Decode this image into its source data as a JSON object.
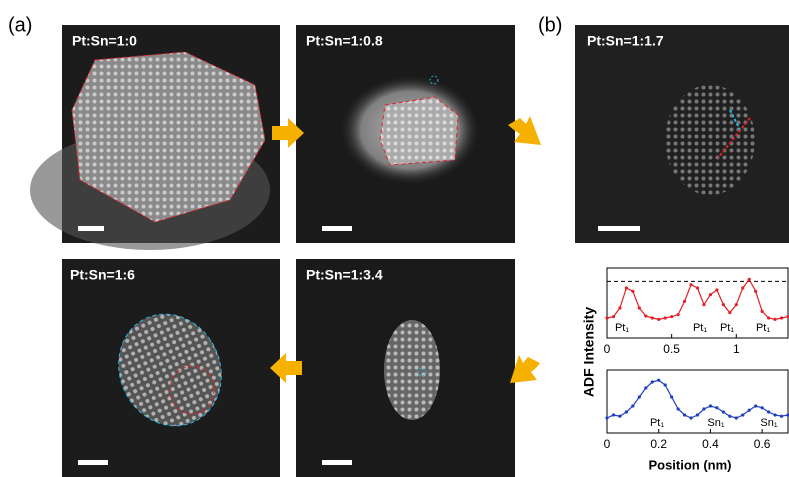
{
  "panel_labels": [
    "(a)",
    "(b)"
  ],
  "images": [
    {
      "label": "Pt:Sn=1:0"
    },
    {
      "label": "Pt:Sn=1:0.8"
    },
    {
      "label": "Pt:Sn=1:6"
    },
    {
      "label": "Pt:Sn=1:3.4"
    },
    {
      "label": "Pt:Sn=1:1.7"
    }
  ],
  "chart_data": [
    {
      "type": "line",
      "ylabel": "ADF Intensity",
      "x": [
        0,
        0.05,
        0.1,
        0.15,
        0.2,
        0.25,
        0.3,
        0.35,
        0.4,
        0.45,
        0.5,
        0.55,
        0.6,
        0.65,
        0.7,
        0.75,
        0.8,
        0.85,
        0.9,
        0.95,
        1.0,
        1.05,
        1.1,
        1.15,
        1.2,
        1.25,
        1.3,
        1.35,
        1.4
      ],
      "series": [
        {
          "color": "#e0202a",
          "values": [
            0.3,
            0.32,
            0.45,
            0.75,
            0.7,
            0.45,
            0.33,
            0.3,
            0.28,
            0.3,
            0.32,
            0.35,
            0.55,
            0.8,
            0.75,
            0.5,
            0.65,
            0.72,
            0.5,
            0.38,
            0.5,
            0.75,
            0.88,
            0.7,
            0.4,
            0.3,
            0.28,
            0.3,
            0.32
          ]
        }
      ],
      "reference_line": 0.85,
      "annotations": [
        "Pt₁",
        "Pt₁",
        "Pt₁",
        "Pt₁"
      ],
      "xlim": [
        0,
        1.4
      ],
      "ylim": [
        0,
        1.05
      ],
      "xticks": [
        0,
        0.5,
        1
      ]
    },
    {
      "type": "line",
      "xlabel": "Position (nm)",
      "x": [
        0,
        0.025,
        0.05,
        0.075,
        0.1,
        0.125,
        0.15,
        0.175,
        0.2,
        0.225,
        0.25,
        0.275,
        0.3,
        0.325,
        0.35,
        0.375,
        0.4,
        0.425,
        0.45,
        0.475,
        0.5,
        0.525,
        0.55,
        0.575,
        0.6,
        0.625,
        0.65,
        0.675,
        0.7
      ],
      "series": [
        {
          "color": "#1f3fbf",
          "values": [
            0.25,
            0.3,
            0.28,
            0.35,
            0.45,
            0.6,
            0.75,
            0.85,
            0.88,
            0.8,
            0.6,
            0.4,
            0.3,
            0.25,
            0.3,
            0.4,
            0.45,
            0.42,
            0.35,
            0.28,
            0.25,
            0.3,
            0.38,
            0.45,
            0.42,
            0.35,
            0.3,
            0.28,
            0.3
          ]
        }
      ],
      "annotations": [
        "Pt₁",
        "Sn₁",
        "Sn₁"
      ],
      "xlim": [
        0,
        0.7
      ],
      "ylim": [
        0,
        1.05
      ],
      "xticks": [
        0,
        0.2,
        0.4,
        0.6
      ]
    }
  ]
}
